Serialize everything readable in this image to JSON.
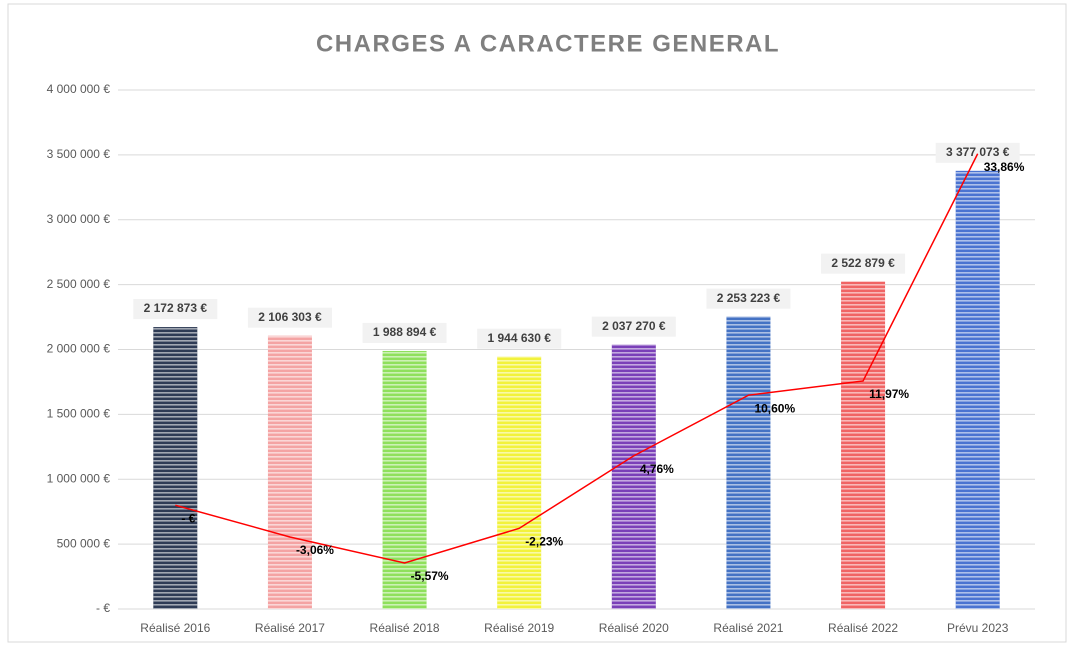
{
  "chart_data": {
    "type": "bar",
    "title": "CHARGES A CARACTERE GENERAL",
    "categories": [
      "Réalisé 2016",
      "Réalisé 2017",
      "Réalisé 2018",
      "Réalisé 2019",
      "Réalisé 2020",
      "Réalisé 2021",
      "Réalisé 2022",
      "Prévu 2023"
    ],
    "series": [
      {
        "type": "bar",
        "colors": [
          "#2e3b55",
          "#f4a3a3",
          "#8fe05c",
          "#f2f23c",
          "#7a40b8",
          "#4472c4",
          "#f06464",
          "#4a73d1"
        ],
        "values": [
          2172873,
          2106303,
          1988894,
          1944630,
          2037270,
          2253223,
          2522879,
          3377073
        ],
        "value_labels": [
          "2 172 873 €",
          "2 106 303 €",
          "1 988 894 €",
          "1 944 630 €",
          "2 037 270 €",
          "2 253 223 €",
          "2 522 879 €",
          "3 377 073 €"
        ]
      },
      {
        "type": "line",
        "color": "#ff0000",
        "axis": "y2",
        "values": [
          0,
          -3.06,
          -5.57,
          -2.23,
          4.76,
          10.6,
          11.97,
          33.86
        ],
        "value_labels": [
          "- €",
          "-3,06%",
          "-5,57%",
          "-2,23%",
          "4,76%",
          "10,60%",
          "11,97%",
          "33,86%"
        ]
      }
    ],
    "ylim": [
      0,
      4000000
    ],
    "yticks": [
      {
        "value": 0,
        "label": "- €"
      },
      {
        "value": 500000,
        "label": "500 000 €"
      },
      {
        "value": 1000000,
        "label": "1 000 000 €"
      },
      {
        "value": 1500000,
        "label": "1 500 000 €"
      },
      {
        "value": 2000000,
        "label": "2 000 000 €"
      },
      {
        "value": 2500000,
        "label": "2 500 000 €"
      },
      {
        "value": 3000000,
        "label": "3 000 000 €"
      },
      {
        "value": 3500000,
        "label": "3 500 000 €"
      },
      {
        "value": 4000000,
        "label": "4 000 000 €"
      }
    ],
    "y2lim": [
      -10,
      40
    ],
    "grid": true
  }
}
